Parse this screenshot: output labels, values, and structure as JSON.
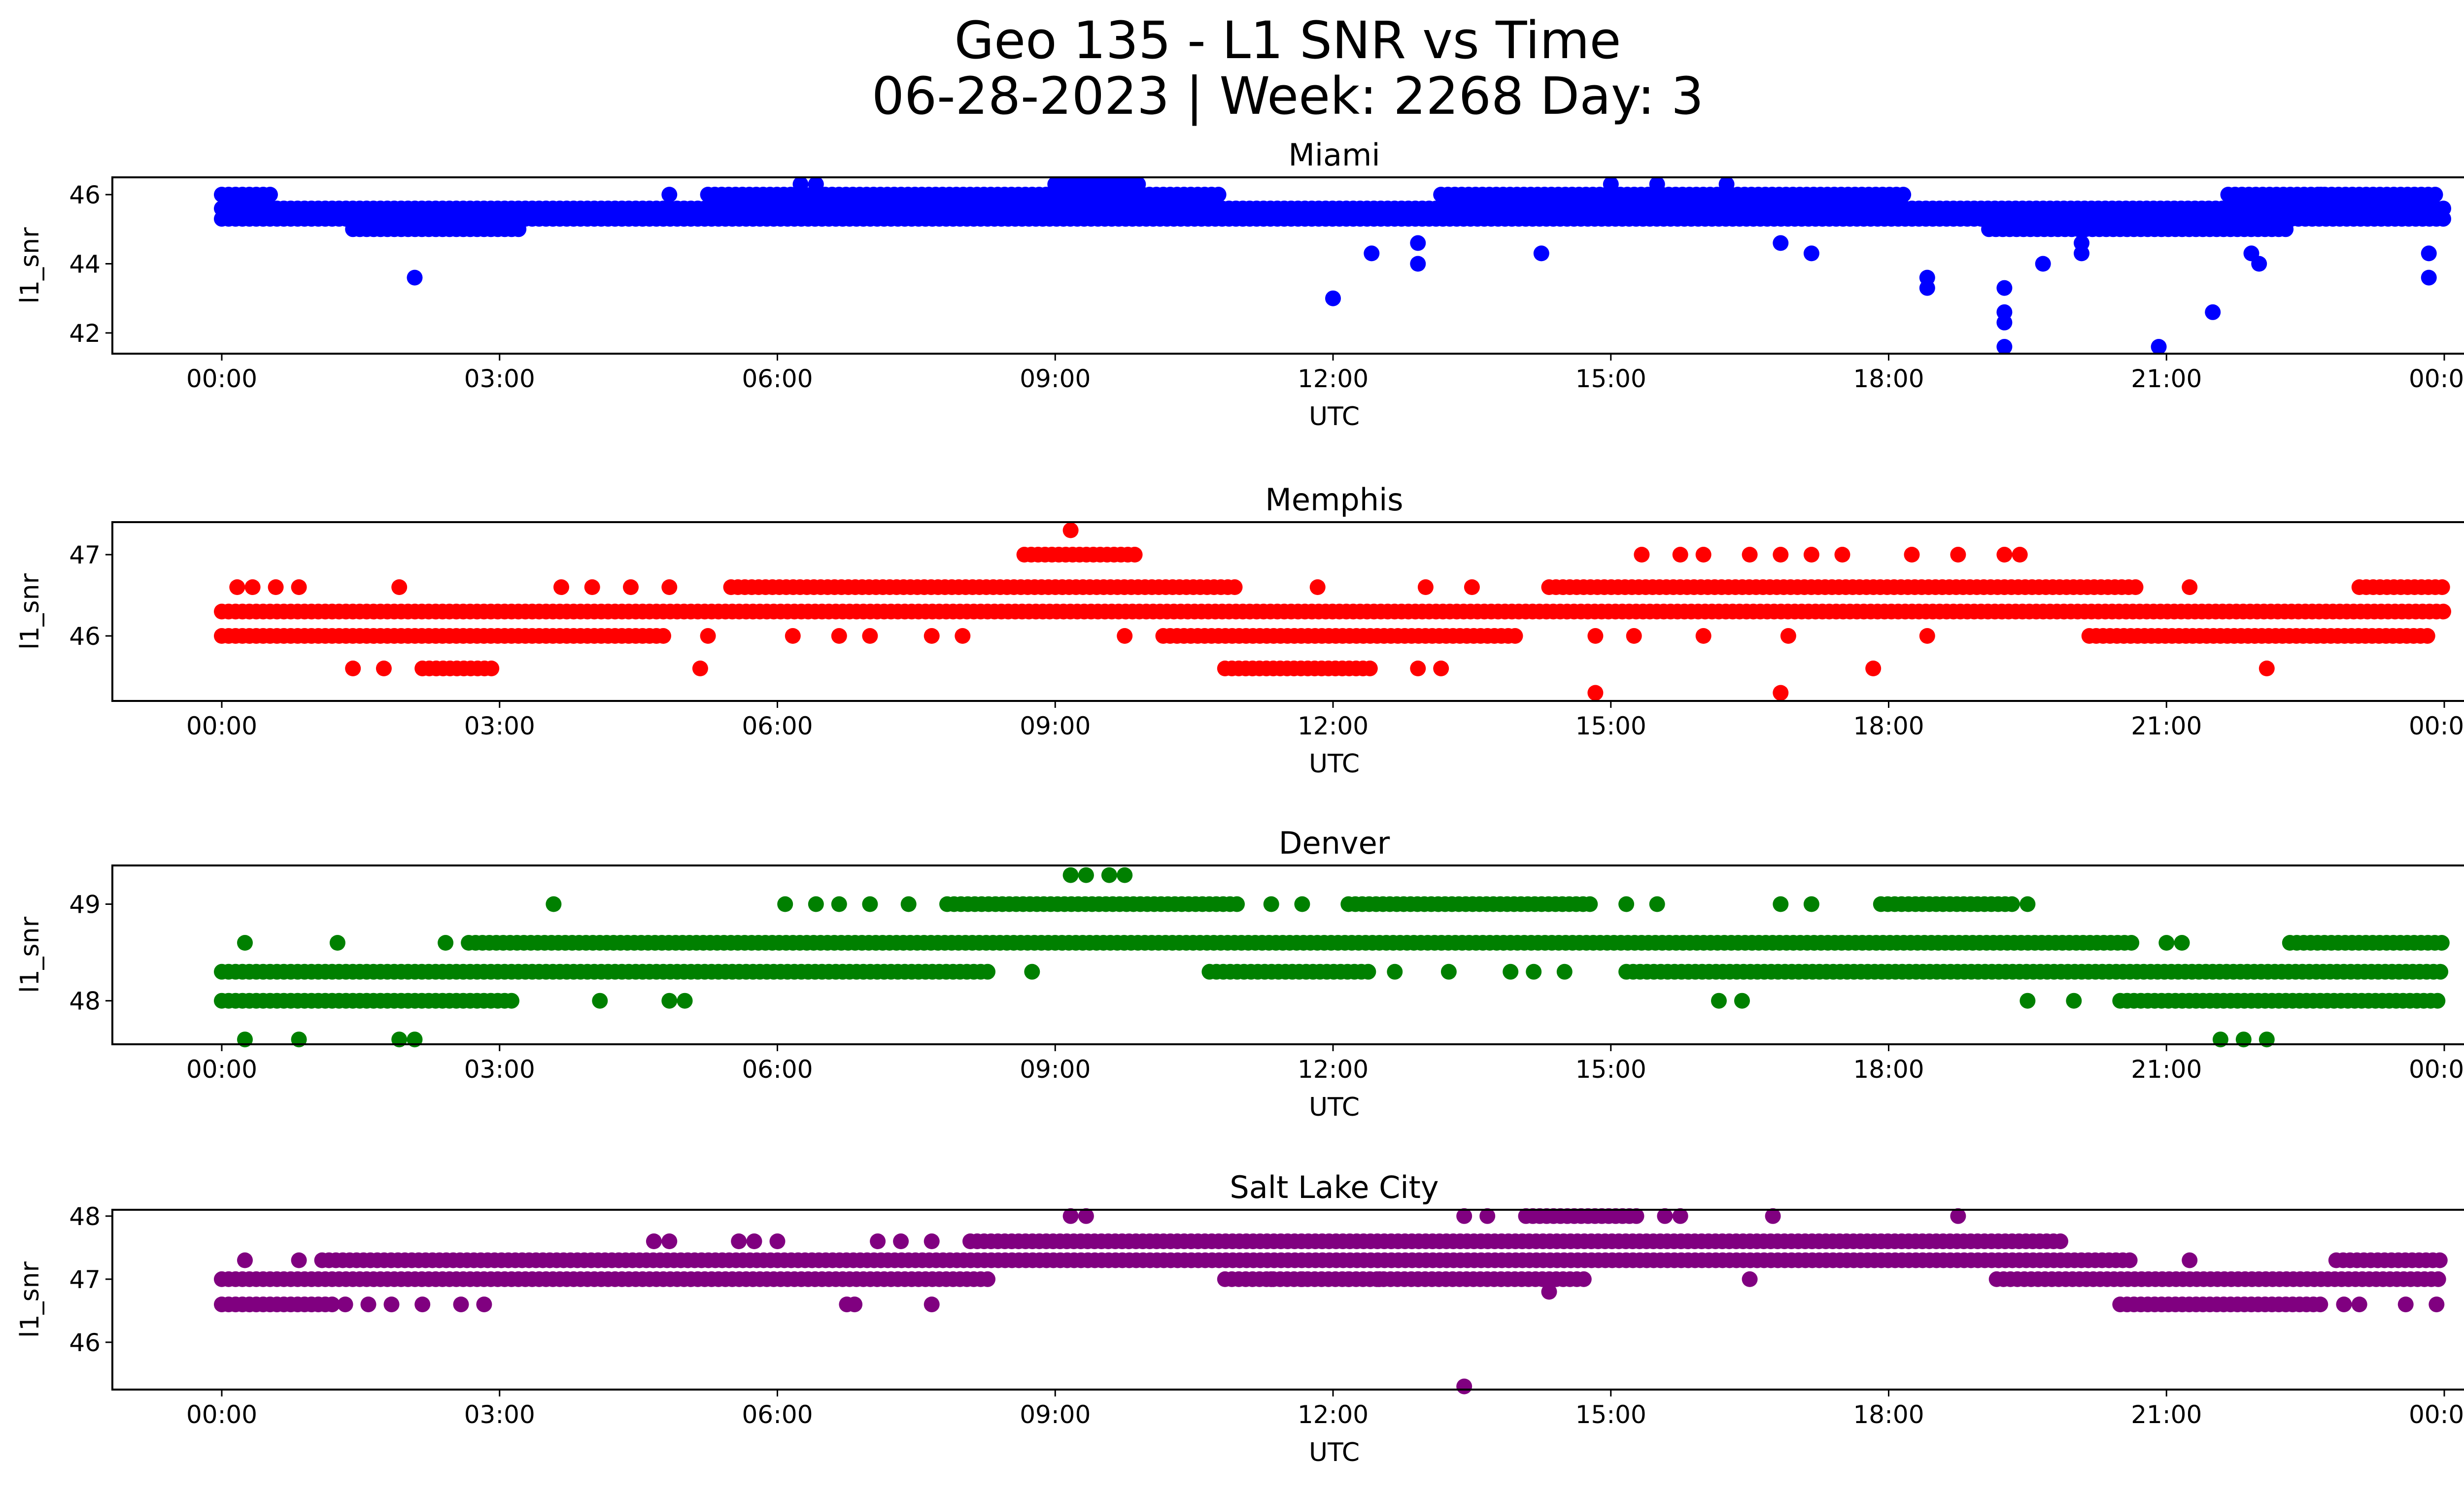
{
  "figure": {
    "title_line1": "Geo 135 - L1 SNR vs Time",
    "title_line2": "06-28-2023 | Week: 2268 Day: 3"
  },
  "chart_data": [
    {
      "type": "scatter",
      "title": "Miami",
      "xlabel": "UTC",
      "ylabel": "l1_snr",
      "color": "#0000ff",
      "x_ticks": [
        "00:00",
        "03:00",
        "06:00",
        "09:00",
        "12:00",
        "15:00",
        "18:00",
        "21:00",
        "00:00"
      ],
      "y_ticks": [
        42,
        44,
        46
      ],
      "xlim": [
        "00:00",
        "24:00"
      ],
      "ylim": [
        41.4,
        46.5
      ],
      "bands": [
        {
          "y": 45.3,
          "from": "00:00",
          "to": "24:00"
        },
        {
          "y": 45.6,
          "from": "00:00",
          "to": "24:00"
        },
        {
          "y": 46.0,
          "from": "00:00",
          "to": "00:35"
        },
        {
          "y": 45.0,
          "from": "01:25",
          "to": "03:15"
        },
        {
          "y": 46.0,
          "from": "05:15",
          "to": "10:50"
        },
        {
          "y": 46.3,
          "from": "09:00",
          "to": "09:55"
        },
        {
          "y": 46.0,
          "from": "13:10",
          "to": "18:10"
        },
        {
          "y": 45.0,
          "from": "19:05",
          "to": "22:20"
        },
        {
          "y": 46.0,
          "from": "21:40",
          "to": "23:55"
        }
      ],
      "points": [
        {
          "x": "02:05",
          "y": 43.6
        },
        {
          "x": "12:00",
          "y": 43.0
        },
        {
          "x": "12:25",
          "y": 44.3
        },
        {
          "x": "12:55",
          "y": 44.6
        },
        {
          "x": "12:55",
          "y": 44.0
        },
        {
          "x": "14:15",
          "y": 44.3
        },
        {
          "x": "16:50",
          "y": 44.6
        },
        {
          "x": "17:10",
          "y": 44.3
        },
        {
          "x": "18:25",
          "y": 43.6
        },
        {
          "x": "18:25",
          "y": 43.3
        },
        {
          "x": "19:15",
          "y": 43.3
        },
        {
          "x": "19:15",
          "y": 42.6
        },
        {
          "x": "19:15",
          "y": 42.3
        },
        {
          "x": "19:15",
          "y": 41.6
        },
        {
          "x": "19:40",
          "y": 44.0
        },
        {
          "x": "20:05",
          "y": 44.6
        },
        {
          "x": "20:05",
          "y": 44.3
        },
        {
          "x": "20:55",
          "y": 41.6
        },
        {
          "x": "21:30",
          "y": 42.6
        },
        {
          "x": "21:55",
          "y": 44.3
        },
        {
          "x": "22:00",
          "y": 44.0
        },
        {
          "x": "23:50",
          "y": 44.3
        },
        {
          "x": "23:50",
          "y": 43.6
        },
        {
          "x": "04:50",
          "y": 46.0
        },
        {
          "x": "06:15",
          "y": 46.3
        },
        {
          "x": "06:25",
          "y": 46.3
        },
        {
          "x": "15:00",
          "y": 46.3
        },
        {
          "x": "16:15",
          "y": 46.3
        },
        {
          "x": "15:30",
          "y": 46.3
        },
        {
          "x": "22:40",
          "y": 46.0
        }
      ]
    },
    {
      "type": "scatter",
      "title": "Memphis",
      "xlabel": "UTC",
      "ylabel": "l1_snr",
      "color": "#ff0000",
      "x_ticks": [
        "00:00",
        "03:00",
        "06:00",
        "09:00",
        "12:00",
        "15:00",
        "18:00",
        "21:00",
        "00:00"
      ],
      "y_ticks": [
        46,
        47
      ],
      "xlim": [
        "00:00",
        "24:00"
      ],
      "ylim": [
        45.2,
        47.4
      ],
      "bands": [
        {
          "y": 46.3,
          "from": "00:00",
          "to": "24:00"
        },
        {
          "y": 46.0,
          "from": "00:00",
          "to": "04:50"
        },
        {
          "y": 46.0,
          "from": "10:10",
          "to": "14:00"
        },
        {
          "y": 46.0,
          "from": "20:10",
          "to": "23:50"
        },
        {
          "y": 46.6,
          "from": "05:30",
          "to": "11:00"
        },
        {
          "y": 46.6,
          "from": "14:20",
          "to": "20:40"
        },
        {
          "y": 46.6,
          "from": "23:05",
          "to": "24:00"
        },
        {
          "y": 47.0,
          "from": "08:40",
          "to": "09:55"
        },
        {
          "y": 45.6,
          "from": "02:10",
          "to": "02:55"
        },
        {
          "y": 45.6,
          "from": "10:50",
          "to": "12:25"
        }
      ],
      "points": [
        {
          "x": "09:10",
          "y": 47.3
        },
        {
          "x": "14:50",
          "y": 45.3
        },
        {
          "x": "16:50",
          "y": 45.3
        },
        {
          "x": "01:25",
          "y": 45.6
        },
        {
          "x": "01:45",
          "y": 45.6
        },
        {
          "x": "05:10",
          "y": 45.6
        },
        {
          "x": "12:55",
          "y": 45.6
        },
        {
          "x": "13:10",
          "y": 45.6
        },
        {
          "x": "17:50",
          "y": 45.6
        },
        {
          "x": "22:05",
          "y": 45.6
        },
        {
          "x": "00:10",
          "y": 46.6
        },
        {
          "x": "00:20",
          "y": 46.6
        },
        {
          "x": "00:35",
          "y": 46.6
        },
        {
          "x": "00:50",
          "y": 46.6
        },
        {
          "x": "01:55",
          "y": 46.6
        },
        {
          "x": "03:40",
          "y": 46.6
        },
        {
          "x": "04:00",
          "y": 46.6
        },
        {
          "x": "04:25",
          "y": 46.6
        },
        {
          "x": "04:50",
          "y": 46.6
        },
        {
          "x": "11:50",
          "y": 46.6
        },
        {
          "x": "13:00",
          "y": 46.6
        },
        {
          "x": "13:30",
          "y": 46.6
        },
        {
          "x": "21:15",
          "y": 46.6
        },
        {
          "x": "15:20",
          "y": 47.0
        },
        {
          "x": "15:45",
          "y": 47.0
        },
        {
          "x": "16:00",
          "y": 47.0
        },
        {
          "x": "16:30",
          "y": 47.0
        },
        {
          "x": "16:50",
          "y": 47.0
        },
        {
          "x": "17:10",
          "y": 47.0
        },
        {
          "x": "17:30",
          "y": 47.0
        },
        {
          "x": "18:15",
          "y": 47.0
        },
        {
          "x": "18:45",
          "y": 47.0
        },
        {
          "x": "19:15",
          "y": 47.0
        },
        {
          "x": "19:25",
          "y": 47.0
        },
        {
          "x": "14:50",
          "y": 46.0
        },
        {
          "x": "15:15",
          "y": 46.0
        },
        {
          "x": "16:00",
          "y": 46.0
        },
        {
          "x": "16:55",
          "y": 46.0
        },
        {
          "x": "18:25",
          "y": 46.0
        },
        {
          "x": "05:15",
          "y": 46.0
        },
        {
          "x": "06:10",
          "y": 46.0
        },
        {
          "x": "06:40",
          "y": 46.0
        },
        {
          "x": "07:00",
          "y": 46.0
        },
        {
          "x": "07:40",
          "y": 46.0
        },
        {
          "x": "08:00",
          "y": 46.0
        },
        {
          "x": "09:45",
          "y": 46.0
        }
      ]
    },
    {
      "type": "scatter",
      "title": "Denver",
      "xlabel": "UTC",
      "ylabel": "l1_snr",
      "color": "#008000",
      "x_ticks": [
        "00:00",
        "03:00",
        "06:00",
        "09:00",
        "12:00",
        "15:00",
        "18:00",
        "21:00",
        "00:00"
      ],
      "y_ticks": [
        48,
        49
      ],
      "xlim": [
        "00:00",
        "24:00"
      ],
      "ylim": [
        47.55,
        49.4
      ],
      "bands": [
        {
          "y": 48.3,
          "from": "00:00",
          "to": "08:20"
        },
        {
          "y": 48.3,
          "from": "10:40",
          "to": "12:25"
        },
        {
          "y": 48.3,
          "from": "15:10",
          "to": "24:00"
        },
        {
          "y": 48.0,
          "from": "00:00",
          "to": "03:10"
        },
        {
          "y": 48.0,
          "from": "20:30",
          "to": "24:00"
        },
        {
          "y": 48.6,
          "from": "02:40",
          "to": "20:40"
        },
        {
          "y": 48.6,
          "from": "22:20",
          "to": "24:00"
        },
        {
          "y": 49.0,
          "from": "07:50",
          "to": "11:00"
        },
        {
          "y": 49.0,
          "from": "12:10",
          "to": "14:50"
        },
        {
          "y": 49.0,
          "from": "17:55",
          "to": "19:20"
        }
      ],
      "points": [
        {
          "x": "00:15",
          "y": 47.6
        },
        {
          "x": "00:50",
          "y": 47.6
        },
        {
          "x": "01:55",
          "y": 47.6
        },
        {
          "x": "02:05",
          "y": 47.6
        },
        {
          "x": "21:35",
          "y": 47.6
        },
        {
          "x": "21:50",
          "y": 47.6
        },
        {
          "x": "22:05",
          "y": 47.6
        },
        {
          "x": "09:10",
          "y": 49.3
        },
        {
          "x": "09:20",
          "y": 49.3
        },
        {
          "x": "09:35",
          "y": 49.3
        },
        {
          "x": "09:45",
          "y": 49.3
        },
        {
          "x": "00:15",
          "y": 48.6
        },
        {
          "x": "01:15",
          "y": 48.6
        },
        {
          "x": "02:25",
          "y": 48.6
        },
        {
          "x": "03:35",
          "y": 49.0
        },
        {
          "x": "06:05",
          "y": 49.0
        },
        {
          "x": "06:25",
          "y": 49.0
        },
        {
          "x": "06:40",
          "y": 49.0
        },
        {
          "x": "07:00",
          "y": 49.0
        },
        {
          "x": "07:25",
          "y": 49.0
        },
        {
          "x": "11:20",
          "y": 49.0
        },
        {
          "x": "11:40",
          "y": 49.0
        },
        {
          "x": "15:10",
          "y": 49.0
        },
        {
          "x": "15:30",
          "y": 49.0
        },
        {
          "x": "16:50",
          "y": 49.0
        },
        {
          "x": "17:10",
          "y": 49.0
        },
        {
          "x": "19:30",
          "y": 49.0
        },
        {
          "x": "04:05",
          "y": 48.0
        },
        {
          "x": "04:50",
          "y": 48.0
        },
        {
          "x": "05:00",
          "y": 48.0
        },
        {
          "x": "16:10",
          "y": 48.0
        },
        {
          "x": "16:25",
          "y": 48.0
        },
        {
          "x": "19:30",
          "y": 48.0
        },
        {
          "x": "20:00",
          "y": 48.0
        },
        {
          "x": "08:45",
          "y": 48.3
        },
        {
          "x": "12:40",
          "y": 48.3
        },
        {
          "x": "13:15",
          "y": 48.3
        },
        {
          "x": "13:55",
          "y": 48.3
        },
        {
          "x": "14:10",
          "y": 48.3
        },
        {
          "x": "14:30",
          "y": 48.3
        },
        {
          "x": "21:00",
          "y": 48.6
        },
        {
          "x": "21:10",
          "y": 48.6
        }
      ]
    },
    {
      "type": "scatter",
      "title": "Salt Lake City",
      "xlabel": "UTC",
      "ylabel": "l1_snr",
      "color": "#800080",
      "x_ticks": [
        "00:00",
        "03:00",
        "06:00",
        "09:00",
        "12:00",
        "15:00",
        "18:00",
        "21:00",
        "00:00"
      ],
      "y_ticks": [
        46,
        47,
        48
      ],
      "xlim": [
        "00:00",
        "24:00"
      ],
      "ylim": [
        45.25,
        48.1
      ],
      "bands": [
        {
          "y": 47.0,
          "from": "00:00",
          "to": "08:20"
        },
        {
          "y": 47.0,
          "from": "10:50",
          "to": "14:45"
        },
        {
          "y": 47.0,
          "from": "19:10",
          "to": "24:00"
        },
        {
          "y": 46.6,
          "from": "00:00",
          "to": "01:15"
        },
        {
          "y": 46.6,
          "from": "20:30",
          "to": "22:40"
        },
        {
          "y": 47.3,
          "from": "01:05",
          "to": "20:40"
        },
        {
          "y": 47.3,
          "from": "22:50",
          "to": "24:00"
        },
        {
          "y": 47.6,
          "from": "08:05",
          "to": "19:55"
        },
        {
          "y": 48.0,
          "from": "14:05",
          "to": "15:20"
        }
      ],
      "points": [
        {
          "x": "13:25",
          "y": 45.3
        },
        {
          "x": "09:10",
          "y": 48.0
        },
        {
          "x": "09:20",
          "y": 48.0
        },
        {
          "x": "13:25",
          "y": 48.0
        },
        {
          "x": "13:40",
          "y": 48.0
        },
        {
          "x": "15:35",
          "y": 48.0
        },
        {
          "x": "15:45",
          "y": 48.0
        },
        {
          "x": "16:45",
          "y": 48.0
        },
        {
          "x": "18:45",
          "y": 48.0
        },
        {
          "x": "00:15",
          "y": 47.3
        },
        {
          "x": "00:50",
          "y": 47.3
        },
        {
          "x": "04:40",
          "y": 47.6
        },
        {
          "x": "04:50",
          "y": 47.6
        },
        {
          "x": "05:35",
          "y": 47.6
        },
        {
          "x": "05:45",
          "y": 47.6
        },
        {
          "x": "06:00",
          "y": 47.6
        },
        {
          "x": "07:05",
          "y": 47.6
        },
        {
          "x": "07:20",
          "y": 47.6
        },
        {
          "x": "07:40",
          "y": 47.6
        },
        {
          "x": "01:20",
          "y": 46.6
        },
        {
          "x": "01:35",
          "y": 46.6
        },
        {
          "x": "01:50",
          "y": 46.6
        },
        {
          "x": "02:10",
          "y": 46.6
        },
        {
          "x": "02:35",
          "y": 46.6
        },
        {
          "x": "02:50",
          "y": 46.6
        },
        {
          "x": "06:45",
          "y": 46.6
        },
        {
          "x": "06:50",
          "y": 46.6
        },
        {
          "x": "07:40",
          "y": 46.6
        },
        {
          "x": "22:55",
          "y": 46.6
        },
        {
          "x": "23:05",
          "y": 46.6
        },
        {
          "x": "23:35",
          "y": 46.6
        },
        {
          "x": "23:55",
          "y": 46.6
        },
        {
          "x": "11:20",
          "y": 47.0
        },
        {
          "x": "11:40",
          "y": 47.0
        },
        {
          "x": "12:10",
          "y": 47.0
        },
        {
          "x": "12:30",
          "y": 47.0
        },
        {
          "x": "12:55",
          "y": 47.0
        },
        {
          "x": "14:20",
          "y": 46.8
        },
        {
          "x": "16:30",
          "y": 47.0
        },
        {
          "x": "21:15",
          "y": 47.3
        }
      ]
    }
  ]
}
